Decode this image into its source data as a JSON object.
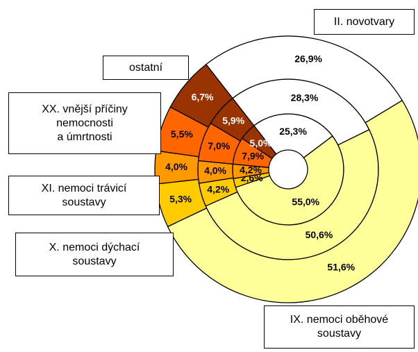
{
  "chart_data": {
    "type": "doughnut",
    "categories": [
      "II. novotvary",
      "IX. nemoci oběhové\nsoustavy",
      "X. nemoci dýchací\nsoustavy",
      "XI. nemoci trávicí\nsoustavy",
      "XX. vnější příčiny\nnemocnosti\na úmrtnosti",
      "ostatní"
    ],
    "colors": [
      "#ffffff",
      "#ffff99",
      "#ffcc00",
      "#ff9900",
      "#ff6600",
      "#993300"
    ],
    "series": [
      {
        "values": [
          25.3,
          55.0,
          2.6,
          4.2,
          7.9,
          5.0
        ],
        "value_labels": [
          "25,3%",
          "55,0%",
          "2,6%",
          "4,2%",
          "7,9%",
          "5,0%"
        ]
      },
      {
        "values": [
          28.3,
          50.6,
          4.2,
          4.0,
          7.0,
          5.9
        ],
        "value_labels": [
          "28,3%",
          "50,6%",
          "4,2%",
          "4,0%",
          "7,0%",
          "5,9%"
        ]
      },
      {
        "values": [
          26.9,
          51.6,
          5.3,
          4.0,
          5.5,
          6.7
        ],
        "value_labels": [
          "26,9%",
          "51,6%",
          "5,3%",
          "4,0%",
          "5,5%",
          "6,7%"
        ]
      }
    ]
  }
}
